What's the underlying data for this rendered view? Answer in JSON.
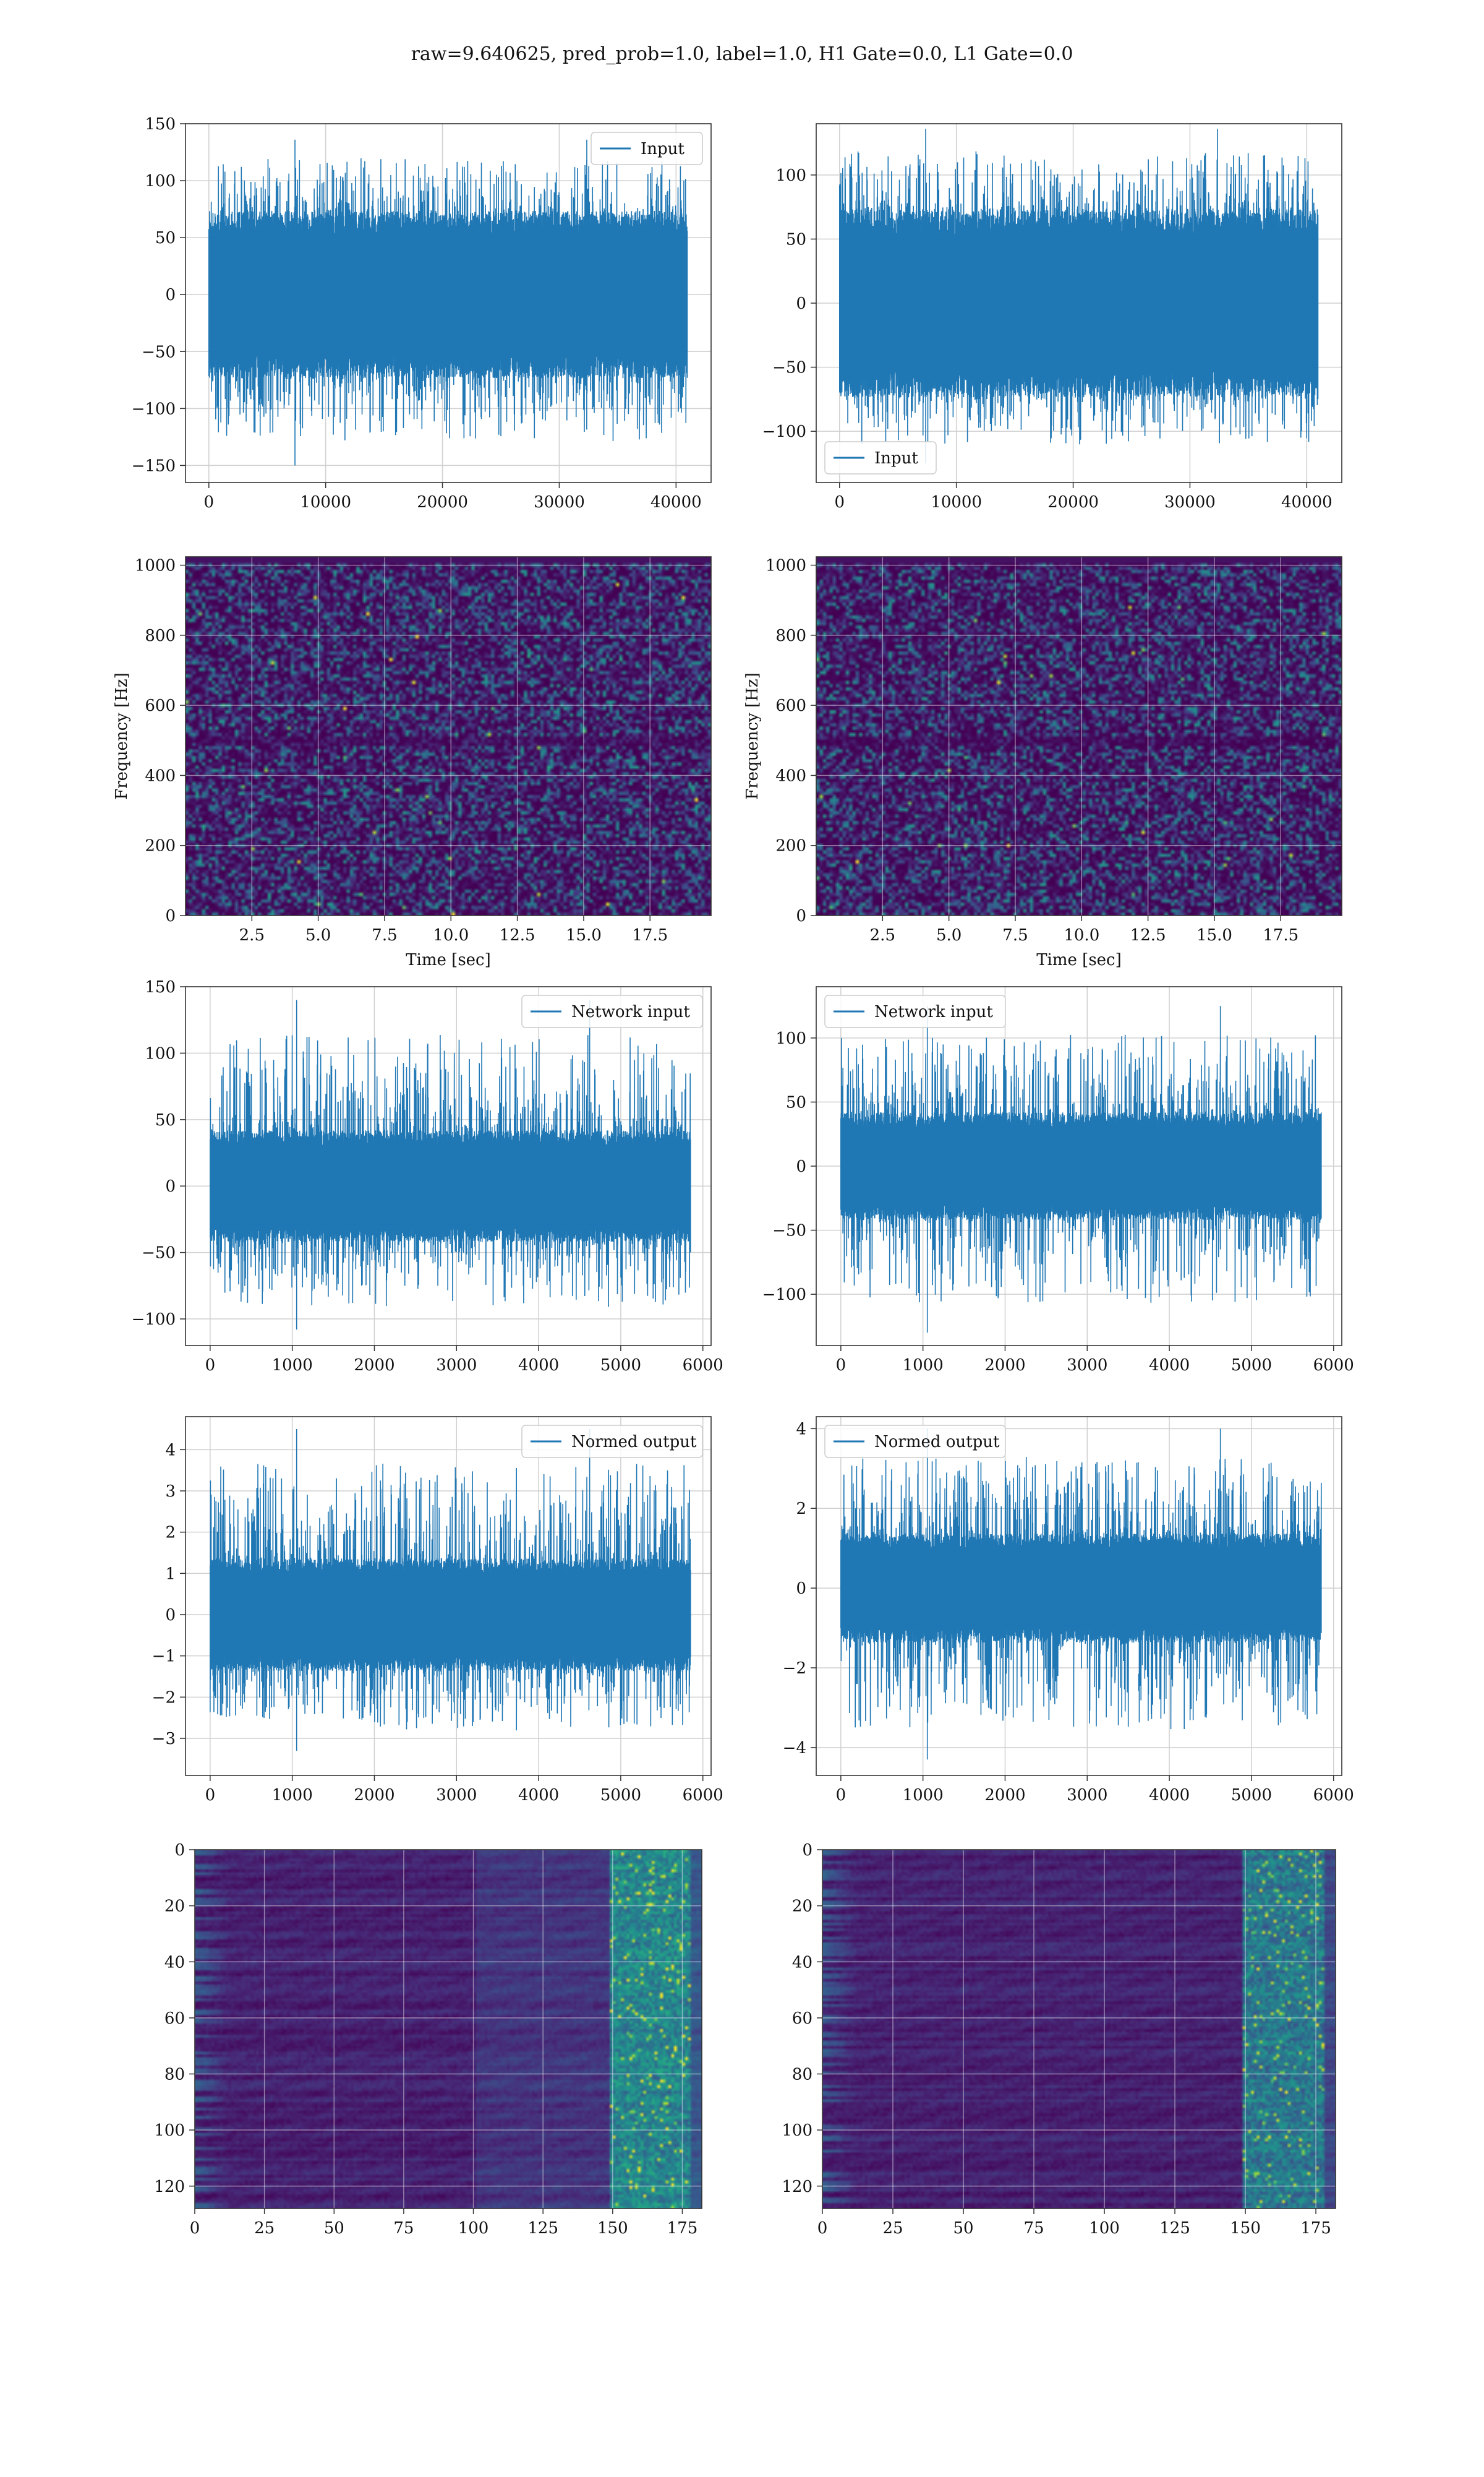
{
  "figure": {
    "suptitle": "raw=9.640625, pred_prob=1.0, label=1.0, H1 Gate=0.0, L1 Gate=0.0"
  },
  "colors": {
    "line": "#1f77b4",
    "grid": "#d0d0d0",
    "viridis_low": "#440154",
    "viridis_high": "#fde725"
  },
  "chart_data": [
    {
      "id": "h1-input",
      "type": "line",
      "legend": "Input",
      "legend_loc": "upper right",
      "xlim": [
        -2000,
        43000
      ],
      "ylim": [
        -165,
        150
      ],
      "xticks": [
        0,
        10000,
        20000,
        30000,
        40000
      ],
      "yticks": [
        -150,
        -100,
        -50,
        0,
        50,
        100,
        150
      ],
      "n_samples": 40960,
      "x_range": [
        0,
        40960
      ],
      "envelope": {
        "dense": 70,
        "peak_max": 136,
        "peak_min": -150
      },
      "grid": true
    },
    {
      "id": "l1-input",
      "type": "line",
      "legend": "Input",
      "legend_loc": "lower left",
      "xlim": [
        -2000,
        43000
      ],
      "ylim": [
        -140,
        140
      ],
      "xticks": [
        0,
        10000,
        20000,
        30000,
        40000
      ],
      "yticks": [
        -100,
        -50,
        0,
        50,
        100
      ],
      "n_samples": 40960,
      "x_range": [
        0,
        40960
      ],
      "envelope": {
        "dense": 70,
        "peak_max": 136,
        "peak_min": -125
      },
      "grid": true
    },
    {
      "id": "h1-spectrogram",
      "type": "heatmap",
      "xlabel": "Time [sec]",
      "ylabel": "Frequency [Hz]",
      "xlim": [
        0,
        19.8
      ],
      "ylim": [
        0,
        1024
      ],
      "xticks": [
        2.5,
        5.0,
        7.5,
        10.0,
        12.5,
        15.0,
        17.5
      ],
      "yticks": [
        0,
        200,
        400,
        600,
        800,
        1000
      ],
      "grid": true,
      "colormap": "viridis"
    },
    {
      "id": "l1-spectrogram",
      "type": "heatmap",
      "xlabel": "Time [sec]",
      "ylabel": "Frequency [Hz]",
      "xlim": [
        0,
        19.8
      ],
      "ylim": [
        0,
        1024
      ],
      "xticks": [
        2.5,
        5.0,
        7.5,
        10.0,
        12.5,
        15.0,
        17.5
      ],
      "yticks": [
        0,
        200,
        400,
        600,
        800,
        1000
      ],
      "grid": true,
      "colormap": "viridis"
    },
    {
      "id": "h1-network-input",
      "type": "line",
      "legend": "Network input",
      "legend_loc": "upper right",
      "xlim": [
        -300,
        6100
      ],
      "ylim": [
        -120,
        150
      ],
      "xticks": [
        0,
        1000,
        2000,
        3000,
        4000,
        5000,
        6000
      ],
      "yticks": [
        -100,
        -50,
        0,
        50,
        100,
        150
      ],
      "n_samples": 5850,
      "x_range": [
        0,
        5850
      ],
      "envelope": {
        "dense": 40,
        "peak_max": 140,
        "peak_min": -108
      },
      "grid": true
    },
    {
      "id": "l1-network-input",
      "type": "line",
      "legend": "Network input",
      "legend_loc": "upper left",
      "xlim": [
        -300,
        6100
      ],
      "ylim": [
        -140,
        140
      ],
      "xticks": [
        0,
        1000,
        2000,
        3000,
        4000,
        5000,
        6000
      ],
      "yticks": [
        -100,
        -50,
        0,
        50,
        100
      ],
      "n_samples": 5850,
      "x_range": [
        0,
        5850
      ],
      "envelope": {
        "dense": 40,
        "peak_max": 125,
        "peak_min": -130
      },
      "grid": true
    },
    {
      "id": "h1-normed-output",
      "type": "line",
      "legend": "Normed output",
      "legend_loc": "upper right",
      "xlim": [
        -300,
        6100
      ],
      "ylim": [
        -3.9,
        4.8
      ],
      "xticks": [
        0,
        1000,
        2000,
        3000,
        4000,
        5000,
        6000
      ],
      "yticks": [
        -3,
        -2,
        -1,
        0,
        1,
        2,
        3,
        4
      ],
      "n_samples": 5850,
      "x_range": [
        0,
        5850
      ],
      "envelope": {
        "dense": 1.3,
        "peak_max": 4.5,
        "peak_min": -3.3
      },
      "grid": true
    },
    {
      "id": "l1-normed-output",
      "type": "line",
      "legend": "Normed output",
      "legend_loc": "upper left",
      "xlim": [
        -300,
        6100
      ],
      "ylim": [
        -4.7,
        4.3
      ],
      "xticks": [
        0,
        1000,
        2000,
        3000,
        4000,
        5000,
        6000
      ],
      "yticks": [
        -4,
        -2,
        0,
        2,
        4
      ],
      "n_samples": 5850,
      "x_range": [
        0,
        5850
      ],
      "envelope": {
        "dense": 1.3,
        "peak_max": 4.0,
        "peak_min": -4.3
      },
      "grid": true
    },
    {
      "id": "h1-feature-map",
      "type": "heatmap",
      "xlim": [
        0,
        182
      ],
      "ylim": [
        128,
        0
      ],
      "xticks": [
        0,
        25,
        50,
        75,
        100,
        125,
        150,
        175
      ],
      "yticks": [
        0,
        20,
        40,
        60,
        80,
        100,
        120
      ],
      "rows": 128,
      "cols": 182,
      "grid": true,
      "colormap": "viridis"
    },
    {
      "id": "l1-feature-map",
      "type": "heatmap",
      "xlim": [
        0,
        182
      ],
      "ylim": [
        128,
        0
      ],
      "xticks": [
        0,
        25,
        50,
        75,
        100,
        125,
        150,
        175
      ],
      "yticks": [
        0,
        20,
        40,
        60,
        80,
        100,
        120
      ],
      "rows": 128,
      "cols": 182,
      "grid": true,
      "colormap": "viridis"
    }
  ]
}
